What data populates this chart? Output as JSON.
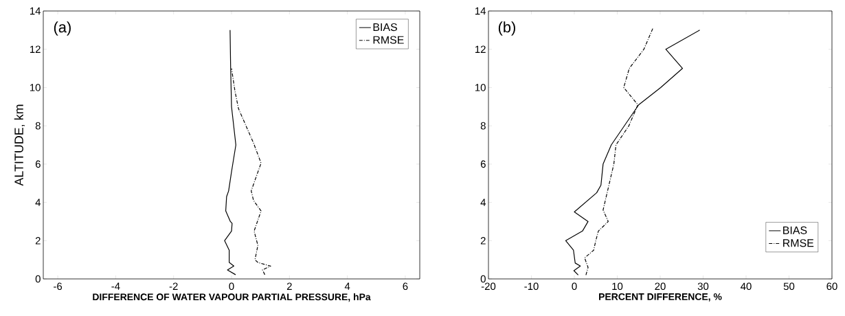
{
  "chart_data": [
    {
      "type": "line",
      "annotations": [
        "(a)"
      ],
      "xlabel": "DIFFERENCE OF WATER VAPOUR PARTIAL PRESSURE, hPa",
      "ylabel": "ALTITUDE, km",
      "xlim": [
        -6.5,
        6.5
      ],
      "ylim": [
        0,
        14
      ],
      "xticks": [
        -6,
        -4,
        -2,
        0,
        2,
        4,
        6
      ],
      "yticks": [
        0,
        2,
        4,
        6,
        8,
        10,
        12,
        14
      ],
      "legend": "top right",
      "grid": false,
      "series": [
        {
          "name": "BIAS",
          "color": "#000000",
          "line_style": "solid",
          "x": [
            0.14,
            -0.14,
            0.08,
            -0.08,
            -0.08,
            -0.24,
            0.0,
            0.02,
            -0.04,
            -0.2,
            -0.17,
            -0.1,
            0.0,
            0.15,
            0.0,
            -0.03,
            -0.05
          ],
          "values": [
            0.22,
            0.47,
            0.67,
            0.86,
            1.5,
            2.0,
            2.5,
            2.9,
            3.0,
            3.55,
            4.3,
            4.6,
            5.6,
            7.0,
            9.0,
            11.0,
            13.0
          ]
        },
        {
          "name": "RMSE",
          "color": "#000000",
          "line_style": "dashdot",
          "x": [
            1.15,
            1.07,
            1.35,
            0.91,
            0.81,
            0.91,
            0.78,
            1.02,
            0.76,
            0.68,
            1.02,
            0.76,
            0.24,
            0.12,
            0.0
          ],
          "values": [
            0.22,
            0.47,
            0.67,
            0.86,
            1.0,
            1.75,
            2.5,
            3.55,
            4.1,
            4.6,
            6.05,
            7.1,
            8.9,
            9.8,
            11.0
          ]
        }
      ]
    },
    {
      "type": "line",
      "annotations": [
        "(b)"
      ],
      "xlabel": "PERCENT DIFFERENCE, %",
      "xlim": [
        -20,
        60
      ],
      "ylim": [
        0,
        14
      ],
      "xticks": [
        -20,
        -10,
        0,
        10,
        20,
        30,
        40,
        50,
        60
      ],
      "yticks": [
        0,
        2,
        4,
        6,
        8,
        10,
        12,
        14
      ],
      "legend": "bottom right",
      "grid": false,
      "series": [
        {
          "name": "BIAS",
          "color": "#000000",
          "line_style": "solid",
          "x": [
            0.9,
            -0.1,
            1.4,
            0.2,
            -0.2,
            -2.0,
            1.9,
            3.2,
            0.0,
            5.2,
            6.2,
            6.7,
            8.6,
            15.0,
            20.1,
            25.2,
            21.3,
            29.2
          ],
          "values": [
            0.2,
            0.43,
            0.67,
            0.83,
            1.5,
            2.0,
            2.5,
            3.0,
            3.5,
            4.5,
            4.9,
            6.0,
            7.0,
            9.1,
            10.0,
            11.0,
            12.0,
            13.0
          ]
        },
        {
          "name": "RMSE",
          "color": "#000000",
          "line_style": "dashdot",
          "x": [
            2.7,
            3.2,
            2.4,
            4.5,
            5.0,
            5.6,
            7.9,
            6.7,
            9.2,
            9.7,
            12.7,
            14.8,
            11.5,
            12.8,
            16.2,
            18.3
          ],
          "values": [
            0.2,
            0.6,
            1.1,
            1.5,
            2.0,
            2.5,
            3.0,
            3.6,
            6.0,
            7.0,
            8.0,
            9.1,
            10.0,
            11.0,
            12.0,
            13.1
          ]
        }
      ]
    }
  ]
}
